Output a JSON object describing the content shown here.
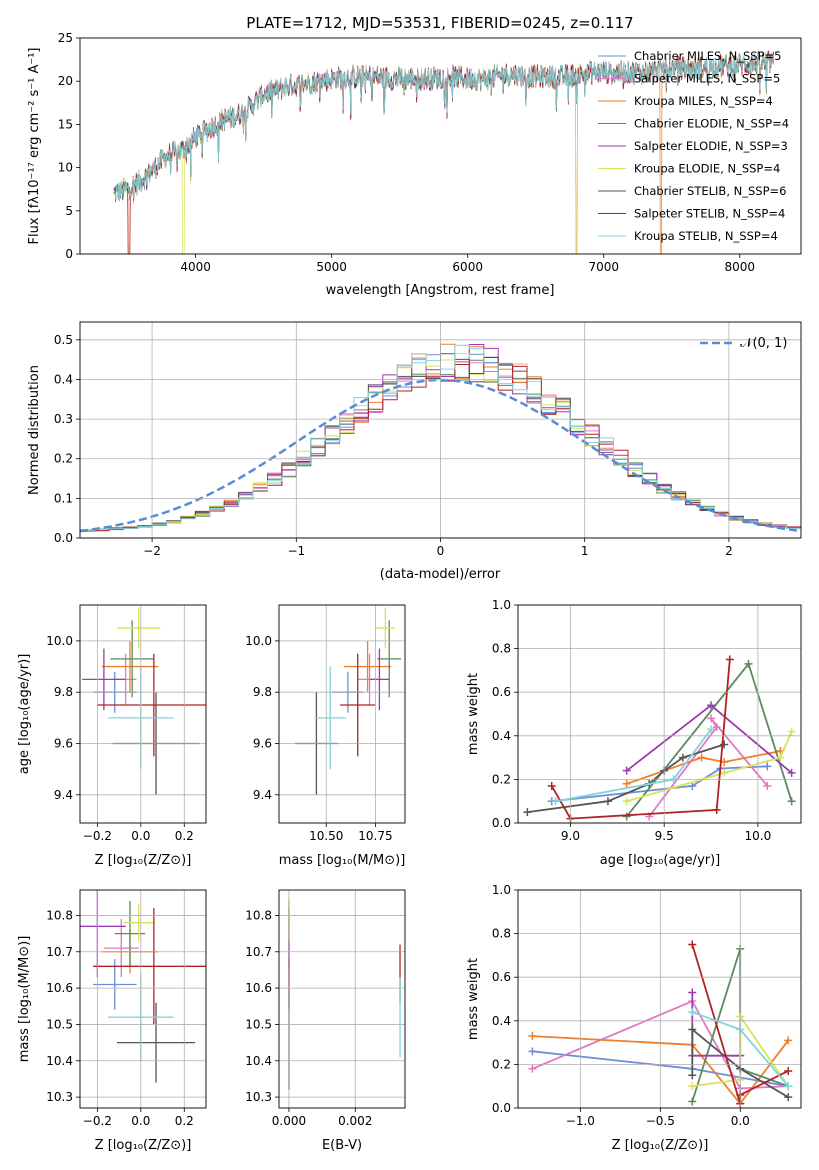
{
  "page_title": "PLATE=1712, MJD=53531, FIBERID=0245, z=0.117",
  "model_colors": [
    "#6b8ed8",
    "#e377c2",
    "#ee7f2d",
    "#5a8a5e",
    "#9d3bb0",
    "#d8e35b",
    "#555555",
    "#b22222",
    "#7fd6dc"
  ],
  "chart_data": [
    {
      "id": "spectrum",
      "type": "line",
      "title": "PLATE=1712, MJD=53531, FIBERID=0245, z=0.117",
      "xlabel": "wavelength [Angstrom, rest frame]",
      "ylabel": "Flux [fλ10⁻¹⁷ erg cm⁻² s⁻¹ A⁻¹]",
      "xlim": [
        3150,
        8450
      ],
      "ylim": [
        0,
        25
      ],
      "xticks": [
        4000,
        5000,
        6000,
        7000,
        8000
      ],
      "yticks": [
        0,
        5,
        10,
        15,
        20,
        25
      ],
      "grid": false,
      "legend_position": "top-right",
      "series": [
        {
          "name": "Chabrier MILES, N_SSP=5"
        },
        {
          "name": "Salpeter MILES, N_SSP=5"
        },
        {
          "name": "Kroupa MILES, N_SSP=4"
        },
        {
          "name": "Chabrier ELODIE, N_SSP=4"
        },
        {
          "name": "Salpeter ELODIE, N_SSP=3"
        },
        {
          "name": "Kroupa ELODIE, N_SSP=4"
        },
        {
          "name": "Chabrier STELIB, N_SSP=6"
        },
        {
          "name": "Salpeter STELIB, N_SSP=4"
        },
        {
          "name": "Kroupa STELIB, N_SSP=4"
        }
      ],
      "continuum": {
        "x": [
          3400,
          3500,
          3600,
          3700,
          3800,
          3900,
          4000,
          4100,
          4200,
          4300,
          4400,
          4500,
          4700,
          4900,
          5100,
          5300,
          5500,
          5700,
          5900,
          6100,
          6300,
          6500,
          6700,
          6900,
          7100,
          7300,
          7500,
          7700,
          7900,
          8100,
          8250
        ],
        "y": [
          7,
          7.5,
          8.5,
          10,
          11.5,
          12,
          13.5,
          14.5,
          15.5,
          16,
          17,
          18.5,
          19.5,
          20,
          20.5,
          20.5,
          20.3,
          20.3,
          20.5,
          20.2,
          20.8,
          20.5,
          20.5,
          21,
          21,
          21,
          21.5,
          21.5,
          21.8,
          22,
          22.2
        ]
      },
      "deep_dips": [
        3510,
        3910,
        6800,
        7420
      ]
    },
    {
      "id": "residuals",
      "type": "histogram",
      "xlabel": "(data-model)/error",
      "ylabel": "Normed distribution",
      "xlim": [
        -2.5,
        2.5
      ],
      "ylim": [
        0,
        0.545
      ],
      "xticks": [
        -2,
        -1,
        0,
        1,
        2
      ],
      "yticks": [
        0,
        0.1,
        0.2,
        0.3,
        0.4,
        0.5
      ],
      "grid": true,
      "legend_position": "top-right",
      "reference_label": "𝒩(0, 1)",
      "bin_width": 0.1,
      "bins_start": -2.5
    },
    {
      "id": "age-vs-z",
      "type": "errorbar",
      "xlabel": "Z [log₁₀(Z/Z⊙)]",
      "ylabel": "age  [log₁₀(age/yr)]",
      "xlim": [
        -0.28,
        0.3
      ],
      "ylim": [
        9.29,
        10.14
      ],
      "xticks": [
        -0.2,
        0.0,
        0.2
      ],
      "xtick_labels": [
        "−0.2",
        "0.0",
        "0.2"
      ],
      "yticks": [
        9.4,
        9.6,
        9.8,
        10.0
      ],
      "points": [
        {
          "x": -0.12,
          "xerr": 0.1,
          "y": 9.8,
          "yerr": 0.08
        },
        {
          "x": -0.07,
          "xerr": 0.05,
          "y": 9.85,
          "yerr": 0.1
        },
        {
          "x": -0.05,
          "xerr": 0.13,
          "y": 9.9,
          "yerr": 0.1
        },
        {
          "x": -0.04,
          "xerr": 0.1,
          "y": 9.93,
          "yerr": 0.15
        },
        {
          "x": -0.17,
          "xerr": 0.1,
          "y": 9.85,
          "yerr": 0.12
        },
        {
          "x": -0.01,
          "xerr": 0.1,
          "y": 10.05,
          "yerr": 0.08
        },
        {
          "x": 0.07,
          "xerr": 0.2,
          "y": 9.6,
          "yerr": 0.2
        },
        {
          "x": 0.06,
          "xerr": 0.26,
          "y": 9.75,
          "yerr": 0.2
        },
        {
          "x": 0.0,
          "xerr": 0.15,
          "y": 9.7,
          "yerr": 0.2
        }
      ]
    },
    {
      "id": "age-vs-mass",
      "type": "errorbar",
      "xlabel": "mass [log₁₀(M/M⊙)]",
      "ylabel": "",
      "xlim": [
        10.26,
        10.9
      ],
      "ylim": [
        9.29,
        10.14
      ],
      "xticks": [
        10.5,
        10.75
      ],
      "xtick_labels": [
        "10.50",
        "10.75"
      ],
      "yticks": [
        9.4,
        9.6,
        9.8,
        10.0
      ],
      "points": [
        {
          "x": 10.61,
          "xerr": 0.08,
          "y": 9.8,
          "yerr": 0.08
        },
        {
          "x": 10.72,
          "xerr": 0.06,
          "y": 9.85,
          "yerr": 0.1
        },
        {
          "x": 10.71,
          "xerr": 0.12,
          "y": 9.9,
          "yerr": 0.1
        },
        {
          "x": 10.82,
          "xerr": 0.06,
          "y": 9.93,
          "yerr": 0.15
        },
        {
          "x": 10.77,
          "xerr": 0.05,
          "y": 9.85,
          "yerr": 0.12
        },
        {
          "x": 10.8,
          "xerr": 0.05,
          "y": 10.05,
          "yerr": 0.08
        },
        {
          "x": 10.45,
          "xerr": 0.11,
          "y": 9.6,
          "yerr": 0.2
        },
        {
          "x": 10.66,
          "xerr": 0.09,
          "y": 9.75,
          "yerr": 0.2
        },
        {
          "x": 10.52,
          "xerr": 0.08,
          "y": 9.7,
          "yerr": 0.2
        }
      ]
    },
    {
      "id": "weight-vs-age",
      "type": "line",
      "xlabel": "age  [log₁₀(age/yr)]",
      "ylabel": "mass weight",
      "xlim": [
        8.72,
        10.23
      ],
      "ylim": [
        0,
        1
      ],
      "xticks": [
        9.0,
        9.5,
        10.0
      ],
      "yticks": [
        0,
        0.2,
        0.4,
        0.6,
        0.8,
        1.0
      ],
      "series": [
        {
          "x": [
            8.9,
            9.65,
            9.8,
            10.05
          ],
          "y": [
            0.1,
            0.17,
            0.25,
            0.26
          ]
        },
        {
          "x": [
            9.42,
            9.78,
            9.75,
            10.05
          ],
          "y": [
            0.03,
            0.44,
            0.48,
            0.17
          ]
        },
        {
          "x": [
            9.3,
            9.7,
            9.82,
            10.12
          ],
          "y": [
            0.18,
            0.3,
            0.28,
            0.33
          ]
        },
        {
          "x": [
            9.3,
            9.95,
            10.18
          ],
          "y": [
            0.03,
            0.73,
            0.1
          ]
        },
        {
          "x": [
            9.3,
            9.75,
            10.18
          ],
          "y": [
            0.24,
            0.54,
            0.23
          ]
        },
        {
          "x": [
            9.3,
            9.82,
            10.12,
            10.18
          ],
          "y": [
            0.1,
            0.23,
            0.3,
            0.42
          ]
        },
        {
          "x": [
            8.77,
            9.2,
            9.42,
            9.5,
            9.6,
            9.82
          ],
          "y": [
            0.05,
            0.1,
            0.18,
            0.24,
            0.3,
            0.36
          ]
        },
        {
          "x": [
            8.9,
            9.0,
            9.78,
            9.85
          ],
          "y": [
            0.17,
            0.02,
            0.06,
            0.75
          ]
        },
        {
          "x": [
            8.92,
            9.55,
            9.75
          ],
          "y": [
            0.1,
            0.2,
            0.43
          ]
        }
      ]
    },
    {
      "id": "mass-vs-z",
      "type": "errorbar",
      "xlabel": "Z [log₁₀(Z/Z⊙)]",
      "ylabel": "mass [log₁₀(M/M⊙)]",
      "xlim": [
        -0.28,
        0.3
      ],
      "ylim": [
        10.27,
        10.87
      ],
      "xticks": [
        -0.2,
        0.0,
        0.2
      ],
      "xtick_labels": [
        "−0.2",
        "0.0",
        "0.2"
      ],
      "yticks": [
        10.3,
        10.4,
        10.5,
        10.6,
        10.7,
        10.8
      ],
      "points": [
        {
          "x": -0.12,
          "xerr": 0.1,
          "y": 10.61,
          "yerr": 0.07
        },
        {
          "x": -0.09,
          "xerr": 0.08,
          "y": 10.71,
          "yerr": 0.08
        },
        {
          "x": -0.05,
          "xerr": 0.13,
          "y": 10.7,
          "yerr": 0.06
        },
        {
          "x": -0.05,
          "xerr": 0.07,
          "y": 10.75,
          "yerr": 0.09
        },
        {
          "x": -0.2,
          "xerr": 0.13,
          "y": 10.77,
          "yerr": 0.14
        },
        {
          "x": -0.01,
          "xerr": 0.07,
          "y": 10.78,
          "yerr": 0.05
        },
        {
          "x": 0.07,
          "xerr": 0.18,
          "y": 10.45,
          "yerr": 0.11
        },
        {
          "x": 0.06,
          "xerr": 0.28,
          "y": 10.66,
          "yerr": 0.16
        },
        {
          "x": 0.0,
          "xerr": 0.15,
          "y": 10.52,
          "yerr": 0.12
        }
      ]
    },
    {
      "id": "mass-vs-ebv",
      "type": "errorbar",
      "xlabel": "E(B-V)",
      "ylabel": "",
      "xlim": [
        -0.0003,
        0.0035
      ],
      "ylim": [
        10.27,
        10.87
      ],
      "xticks": [
        0.0,
        0.002
      ],
      "xtick_labels": [
        "0.000",
        "0.002"
      ],
      "yticks": [
        10.3,
        10.4,
        10.5,
        10.6,
        10.7,
        10.8
      ],
      "points": [
        {
          "x": 0.0,
          "y": 10.61,
          "yerr": 0.07
        },
        {
          "x": 0.0,
          "y": 10.71,
          "yerr": 0.08
        },
        {
          "x": 0.0,
          "y": 10.62,
          "yerr": 0.06
        },
        {
          "x": 0.0,
          "y": 10.75,
          "yerr": 0.09
        },
        {
          "x": 0.0,
          "y": 10.7,
          "yerr": 0.12
        },
        {
          "x": 0.0,
          "y": 10.79,
          "yerr": 0.06
        },
        {
          "x": 0.0,
          "y": 10.45,
          "yerr": 0.13
        },
        {
          "x": 0.00335,
          "y": 10.64,
          "yerr": 0.08
        },
        {
          "x": 0.00335,
          "y": 10.52,
          "yerr": 0.11
        }
      ]
    },
    {
      "id": "weight-vs-z",
      "type": "line",
      "xlabel": "Z [log₁₀(Z/Z⊙)]",
      "ylabel": "mass weight",
      "xlim": [
        -1.39,
        0.38
      ],
      "ylim": [
        0,
        1
      ],
      "xticks": [
        -1.0,
        -0.5,
        0.0
      ],
      "xtick_labels": [
        "−1.0",
        "−0.5",
        "0.0"
      ],
      "yticks": [
        0,
        0.2,
        0.4,
        0.6,
        0.8,
        1.0
      ],
      "series": [
        {
          "x": [
            -1.3,
            -0.3,
            0.3
          ],
          "y": [
            0.26,
            0.18,
            0.1
          ]
        },
        {
          "x": [
            -1.3,
            -0.3,
            0.0,
            0.3
          ],
          "y": [
            0.18,
            0.49,
            0.09,
            0.1
          ]
        },
        {
          "x": [
            -1.3,
            -0.3,
            0.0,
            0.3
          ],
          "y": [
            0.33,
            0.29,
            0.02,
            0.31
          ]
        },
        {
          "x": [
            -0.3,
            0.0,
            0.0,
            0.3
          ],
          "y": [
            0.03,
            0.73,
            0.18,
            0.1
          ]
        },
        {
          "x": [
            -0.3,
            -0.3,
            0.0
          ],
          "y": [
            0.53,
            0.24,
            0.24
          ]
        },
        {
          "x": [
            -0.3,
            0.0,
            0.0,
            0.3
          ],
          "y": [
            0.1,
            0.13,
            0.42,
            0.1
          ]
        },
        {
          "x": [
            -0.3,
            -0.3,
            0.0,
            0.3
          ],
          "y": [
            0.15,
            0.36,
            0.18,
            0.05
          ]
        },
        {
          "x": [
            -0.3,
            0.0,
            0.0,
            0.3
          ],
          "y": [
            0.75,
            0.02,
            0.06,
            0.17
          ]
        },
        {
          "x": [
            -0.3,
            0.0,
            0.3
          ],
          "y": [
            0.44,
            0.36,
            0.1
          ]
        }
      ]
    }
  ]
}
